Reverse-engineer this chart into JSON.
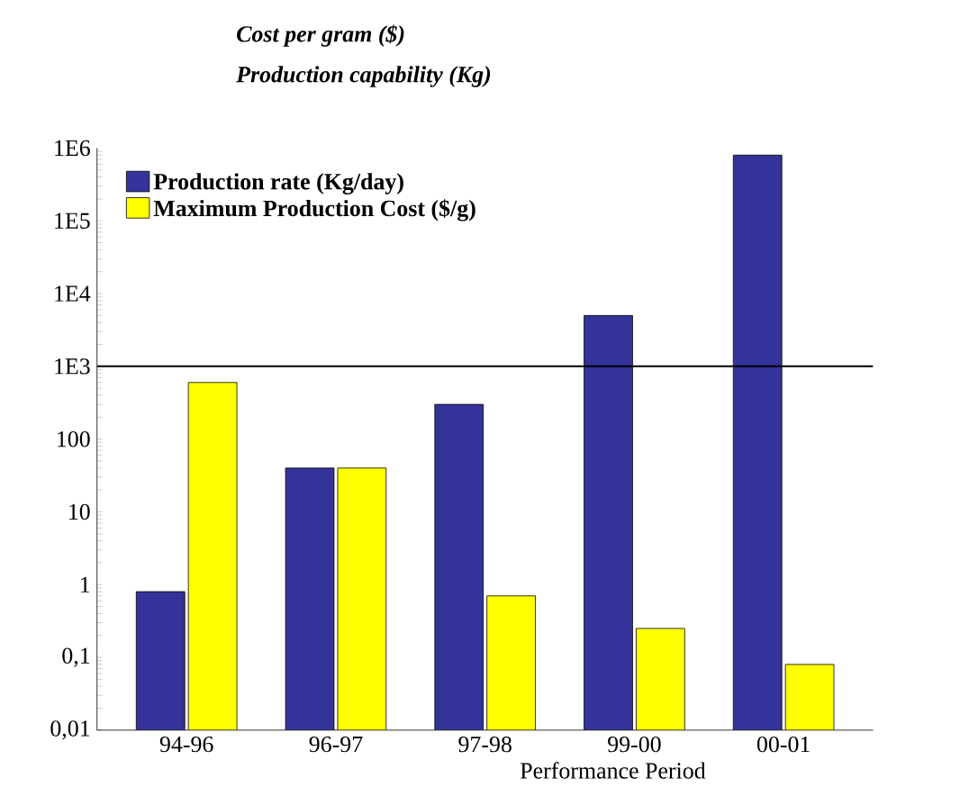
{
  "chart_data": {
    "type": "bar",
    "title": "Cost per gram ($)",
    "subtitle": "Production capability (Kg)",
    "xlabel": "Performance Period",
    "categories": [
      "94-96",
      "96-97",
      "97-98",
      "99-00",
      "00-01"
    ],
    "series": [
      {
        "name": "Production rate (Kg/day)",
        "color": "#333399",
        "values": [
          0.8,
          40,
          300,
          5000,
          800000
        ]
      },
      {
        "name": "Maximum Production Cost ($/g)",
        "color": "#ffff00",
        "values": [
          600,
          40,
          0.7,
          0.25,
          0.08
        ]
      }
    ],
    "log": true,
    "ylim": [
      0.01,
      1000000
    ],
    "yticks": [
      {
        "value": 0.01,
        "label": "0,01"
      },
      {
        "value": 0.1,
        "label": "0,1"
      },
      {
        "value": 1,
        "label": "1"
      },
      {
        "value": 10,
        "label": "10"
      },
      {
        "value": 100,
        "label": "100"
      },
      {
        "value": 1000,
        "label": "1E3"
      },
      {
        "value": 10000,
        "label": "1E4"
      },
      {
        "value": 100000,
        "label": "1E5"
      },
      {
        "value": 1000000,
        "label": "1E6"
      }
    ],
    "ref_lines": [
      {
        "axis": "y",
        "value": 1000,
        "color": "#000000"
      }
    ],
    "legend": "top left",
    "grid": false
  }
}
